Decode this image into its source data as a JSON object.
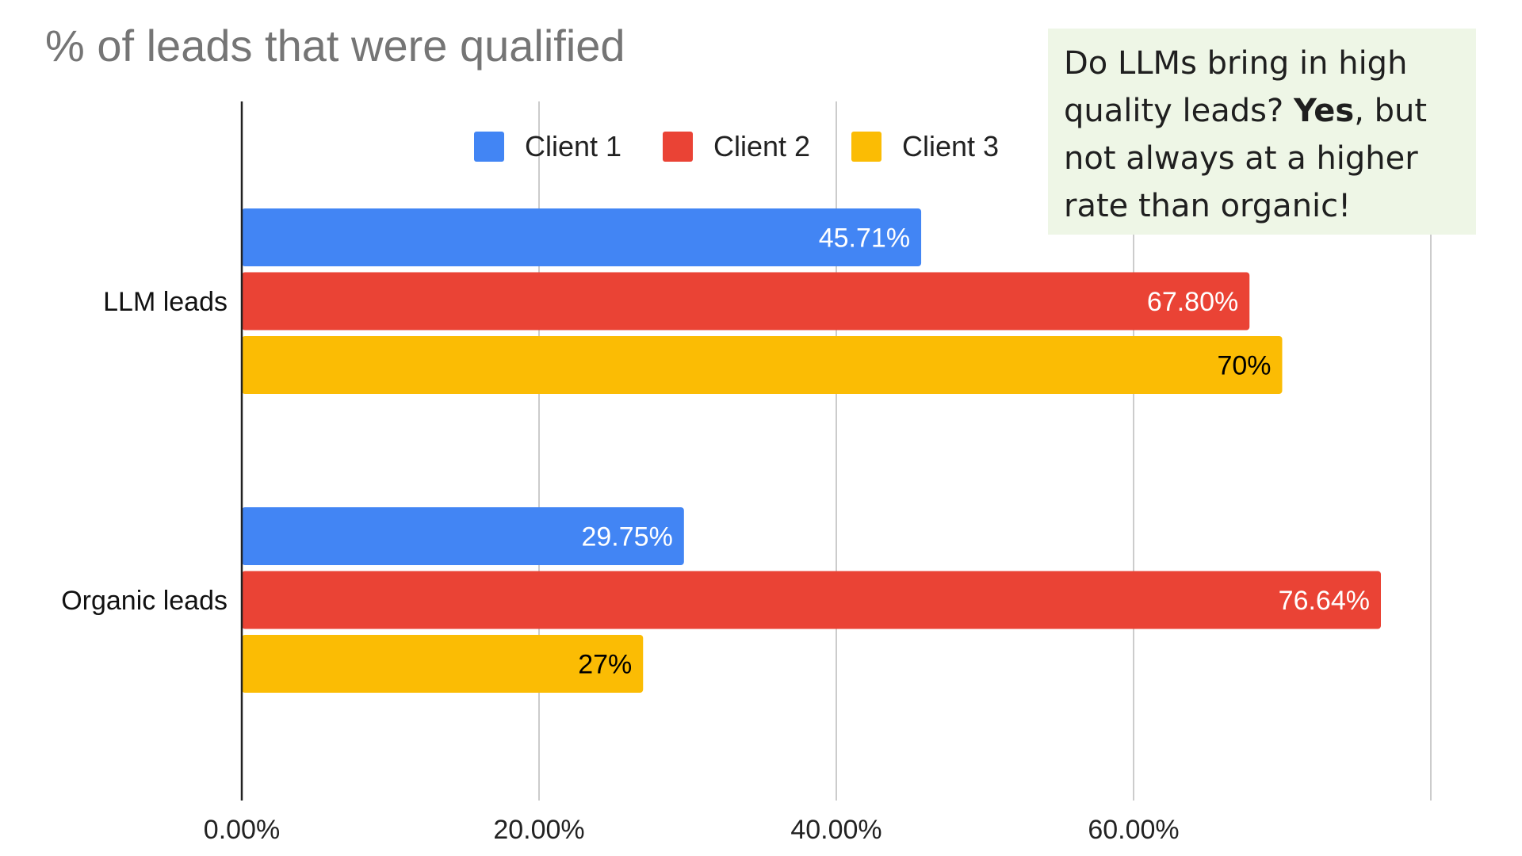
{
  "chart_data": {
    "type": "bar",
    "orientation": "horizontal",
    "title": "% of leads that were qualified",
    "categories": [
      "LLM leads",
      "Organic leads"
    ],
    "series": [
      {
        "name": "Client 1",
        "color": "#4285F4",
        "values": [
          45.71,
          29.75
        ],
        "labels": [
          "45.71%",
          "29.75%"
        ],
        "label_color": "#ffffff"
      },
      {
        "name": "Client 2",
        "color": "#EA4335",
        "values": [
          67.8,
          76.64
        ],
        "labels": [
          "67.80%",
          "76.64%"
        ],
        "label_color": "#ffffff"
      },
      {
        "name": "Client 3",
        "color": "#FBBC04",
        "values": [
          70,
          27
        ],
        "labels": [
          "70%",
          "27%"
        ],
        "label_color": "#000000"
      }
    ],
    "xlim": [
      0,
      80
    ],
    "xticks": [
      0,
      20,
      40,
      60
    ],
    "xtick_labels": [
      "0.00%",
      "20.00%",
      "40.00%",
      "60.00%"
    ],
    "grid": true,
    "legend_position": "top"
  },
  "annotation": {
    "text_before": "Do LLMs bring in high quality leads? ",
    "text_bold": "Yes",
    "text_after": ", but not always at a higher rate than organic!"
  }
}
